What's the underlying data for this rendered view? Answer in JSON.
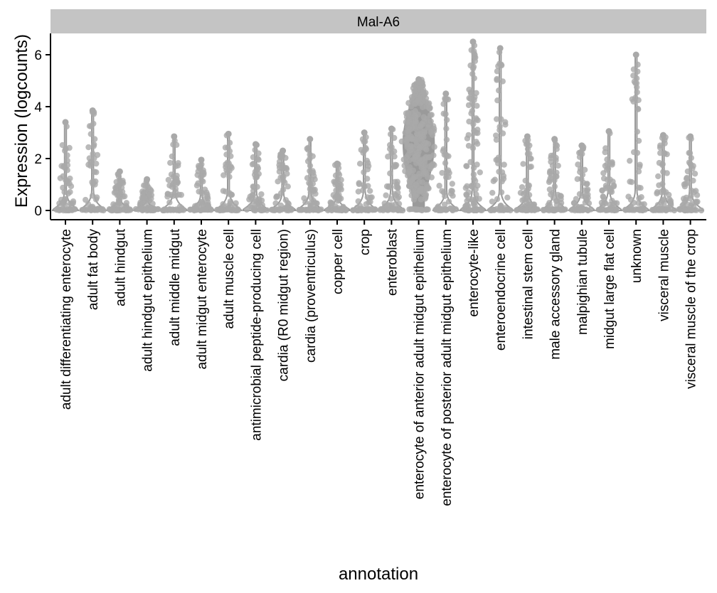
{
  "chart_data": {
    "type": "violin",
    "facet_title": "Mal-A6",
    "xlabel": "annotation",
    "ylabel": "Expression (logcounts)",
    "ylim": [
      0,
      6.5
    ],
    "yticks": [
      0,
      2,
      4,
      6
    ],
    "grid": false,
    "legend": "none",
    "colors": {
      "violin": "#9a9a9a",
      "points": "#a9a9a9",
      "strip": "#c4c4c4",
      "axis": "#000000"
    },
    "categories": [
      "adult differentiating enterocyte",
      "adult fat body",
      "adult hindgut",
      "adult hindgut epithelium",
      "adult middle midgut",
      "adult midgut enterocyte",
      "adult muscle cell",
      "antimicrobial peptide-producing cell",
      "cardia (R0 midgut region)",
      "cardia (proventriculus)",
      "copper cell",
      "crop",
      "enteroblast",
      "enterocyte of anterior adult midgut epithelium",
      "enterocyte of posterior adult midgut epithelium",
      "enterocyte-like",
      "enteroendocrine cell",
      "intestinal stem cell",
      "male accessory gland",
      "malpighian tubule",
      "midgut large flat cell",
      "unknown",
      "visceral muscle",
      "visceral muscle of the crop"
    ],
    "max_values": [
      3.4,
      3.85,
      1.5,
      1.2,
      2.85,
      1.95,
      2.95,
      2.55,
      2.3,
      2.75,
      1.8,
      3.0,
      3.15,
      5.05,
      4.5,
      6.5,
      6.25,
      2.85,
      2.75,
      2.5,
      3.05,
      6.0,
      2.9,
      2.85
    ]
  }
}
